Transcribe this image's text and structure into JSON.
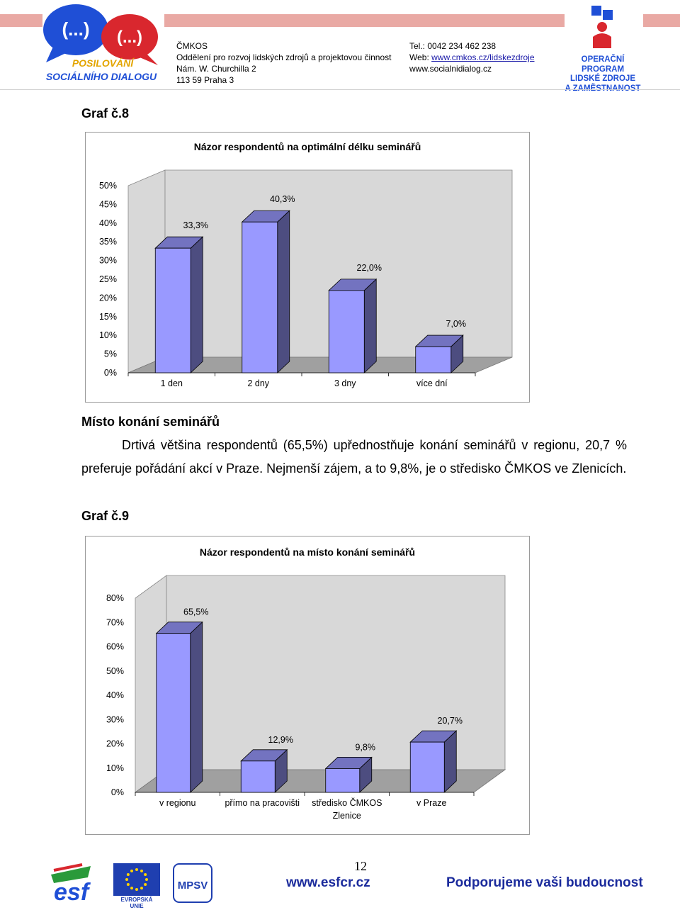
{
  "header": {
    "logo_line1": "(...)",
    "logo_line2": "(...)",
    "logo_text1": "POSILOVÁNÍ",
    "logo_text2": "SOCIÁLNÍHO DIALOGU",
    "org_lines": [
      "ČMKOS",
      "Oddělení pro rozvoj lidských zdrojů  a projektovou činnost",
      "Nám. W. Churchilla 2",
      "113 59 Praha 3"
    ],
    "tel": "Tel.: 0042 234 462 238",
    "web_label": "Web: ",
    "web_link": "www.cmkos.cz/lidskezdroje",
    "web2": "www.socialnidialog.cz",
    "op_lines": [
      "OPERAČNÍ PROGRAM",
      "LIDSKÉ ZDROJE",
      "A ZAMĚSTNANOST"
    ]
  },
  "colors": {
    "bar_front": "#9999ff",
    "bar_side": "#4d4d80",
    "bar_top": "#7373c0",
    "wall": "#d8d8d8",
    "floor": "#a0a0a0",
    "header_strip": "#e9a9a4",
    "footer_blue": "#1b2b9c"
  },
  "section1": {
    "heading": "Graf č.8"
  },
  "chart8": {
    "chart_data": {
      "type": "bar",
      "title": "Názor respondentů na optimální délku seminářů",
      "categories": [
        "1 den",
        "2 dny",
        "3 dny",
        "více dní"
      ],
      "values": [
        33.3,
        40.3,
        22.0,
        7.0
      ],
      "value_labels": [
        "33,3%",
        "40,3%",
        "22,0%",
        "7,0%"
      ],
      "y_ticks": [
        "0%",
        "5%",
        "10%",
        "15%",
        "20%",
        "25%",
        "30%",
        "35%",
        "40%",
        "45%",
        "50%"
      ],
      "ylim": [
        0,
        50
      ],
      "grid": false,
      "legend": "none"
    }
  },
  "section2": {
    "heading": "Místo konání seminářů",
    "paragraph": "Drtivá většina respondentů (65,5%) upřednostňuje konání seminářů v regionu, 20,7 % preferuje pořádání akcí v Praze. Nejmenší zájem, a to 9,8%, je o středisko ČMKOS ve Zlenicích.",
    "graph_label": "Graf č.9"
  },
  "chart9": {
    "chart_data": {
      "type": "bar",
      "title": "Názor respondentů na místo konání seminářů",
      "categories": [
        "v regionu",
        "přímo na pracovišti",
        "středisko ČMKOS Zlenice",
        "v Praze"
      ],
      "category_lines": [
        [
          "v regionu"
        ],
        [
          "přímo na pracovišti"
        ],
        [
          "středisko ČMKOS",
          "Zlenice"
        ],
        [
          "v Praze"
        ]
      ],
      "values": [
        65.5,
        12.9,
        9.8,
        20.7
      ],
      "value_labels": [
        "65,5%",
        "12,9%",
        "9,8%",
        "20,7%"
      ],
      "y_ticks": [
        "0%",
        "10%",
        "20%",
        "30%",
        "40%",
        "50%",
        "60%",
        "70%",
        "80%"
      ],
      "ylim": [
        0,
        80
      ],
      "grid": false,
      "legend": "none"
    }
  },
  "footer": {
    "page_number": "12",
    "esf_logo_text": "esf",
    "eu_text": "EVROPSKÁ UNIE",
    "mpsv_text": "MPSV",
    "website": "www.esfcr.cz",
    "slogan": "Podporujeme vaši budoucnost"
  }
}
